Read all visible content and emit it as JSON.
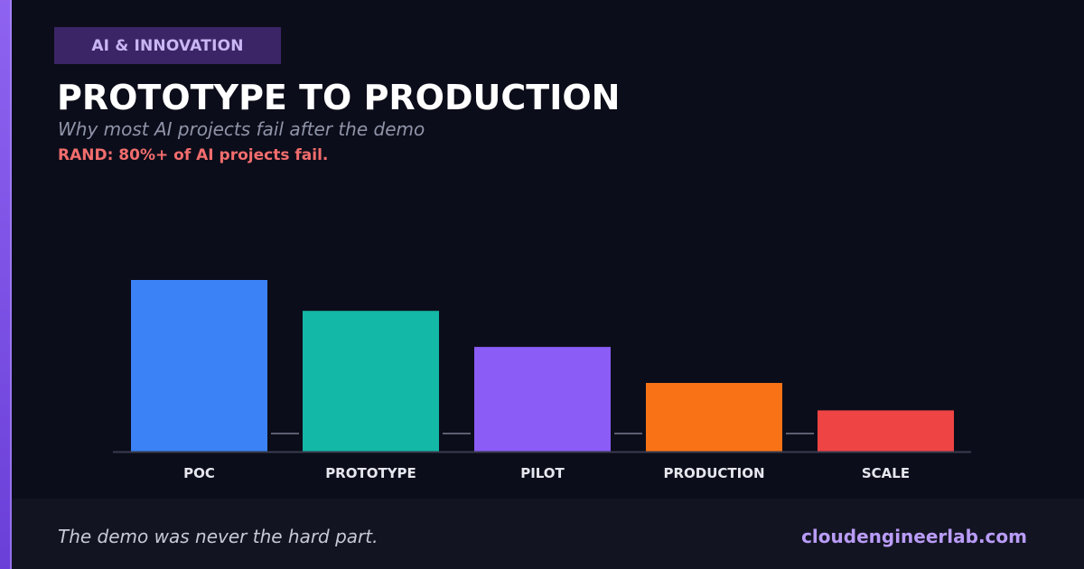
{
  "category": "AI & INNOVATION",
  "title": "PROTOTYPE TO PRODUCTION",
  "subtitle": "Why most AI projects fail after the demo",
  "stat": "RAND: 80%+ of AI projects fail.",
  "footer": {
    "tagline": "The demo was never the hard part.",
    "site": "cloudengineerlab.com"
  },
  "colors": {
    "accent": "#8b5cf6",
    "background": "#0c0d1a",
    "stat": "#f26d6d",
    "link": "#b99cf7"
  },
  "chart_data": {
    "type": "bar",
    "categories": [
      "POC",
      "PROTOTYPE",
      "PILOT",
      "PRODUCTION",
      "SCALE"
    ],
    "values": [
      100,
      82,
      61,
      40,
      24
    ],
    "colors": [
      "#3b82f6",
      "#14b8a6",
      "#8b5cf6",
      "#f97316",
      "#ef4444"
    ],
    "ylim": [
      0,
      100
    ],
    "grid": false,
    "legend": false,
    "xlabel": "",
    "ylabel": ""
  }
}
